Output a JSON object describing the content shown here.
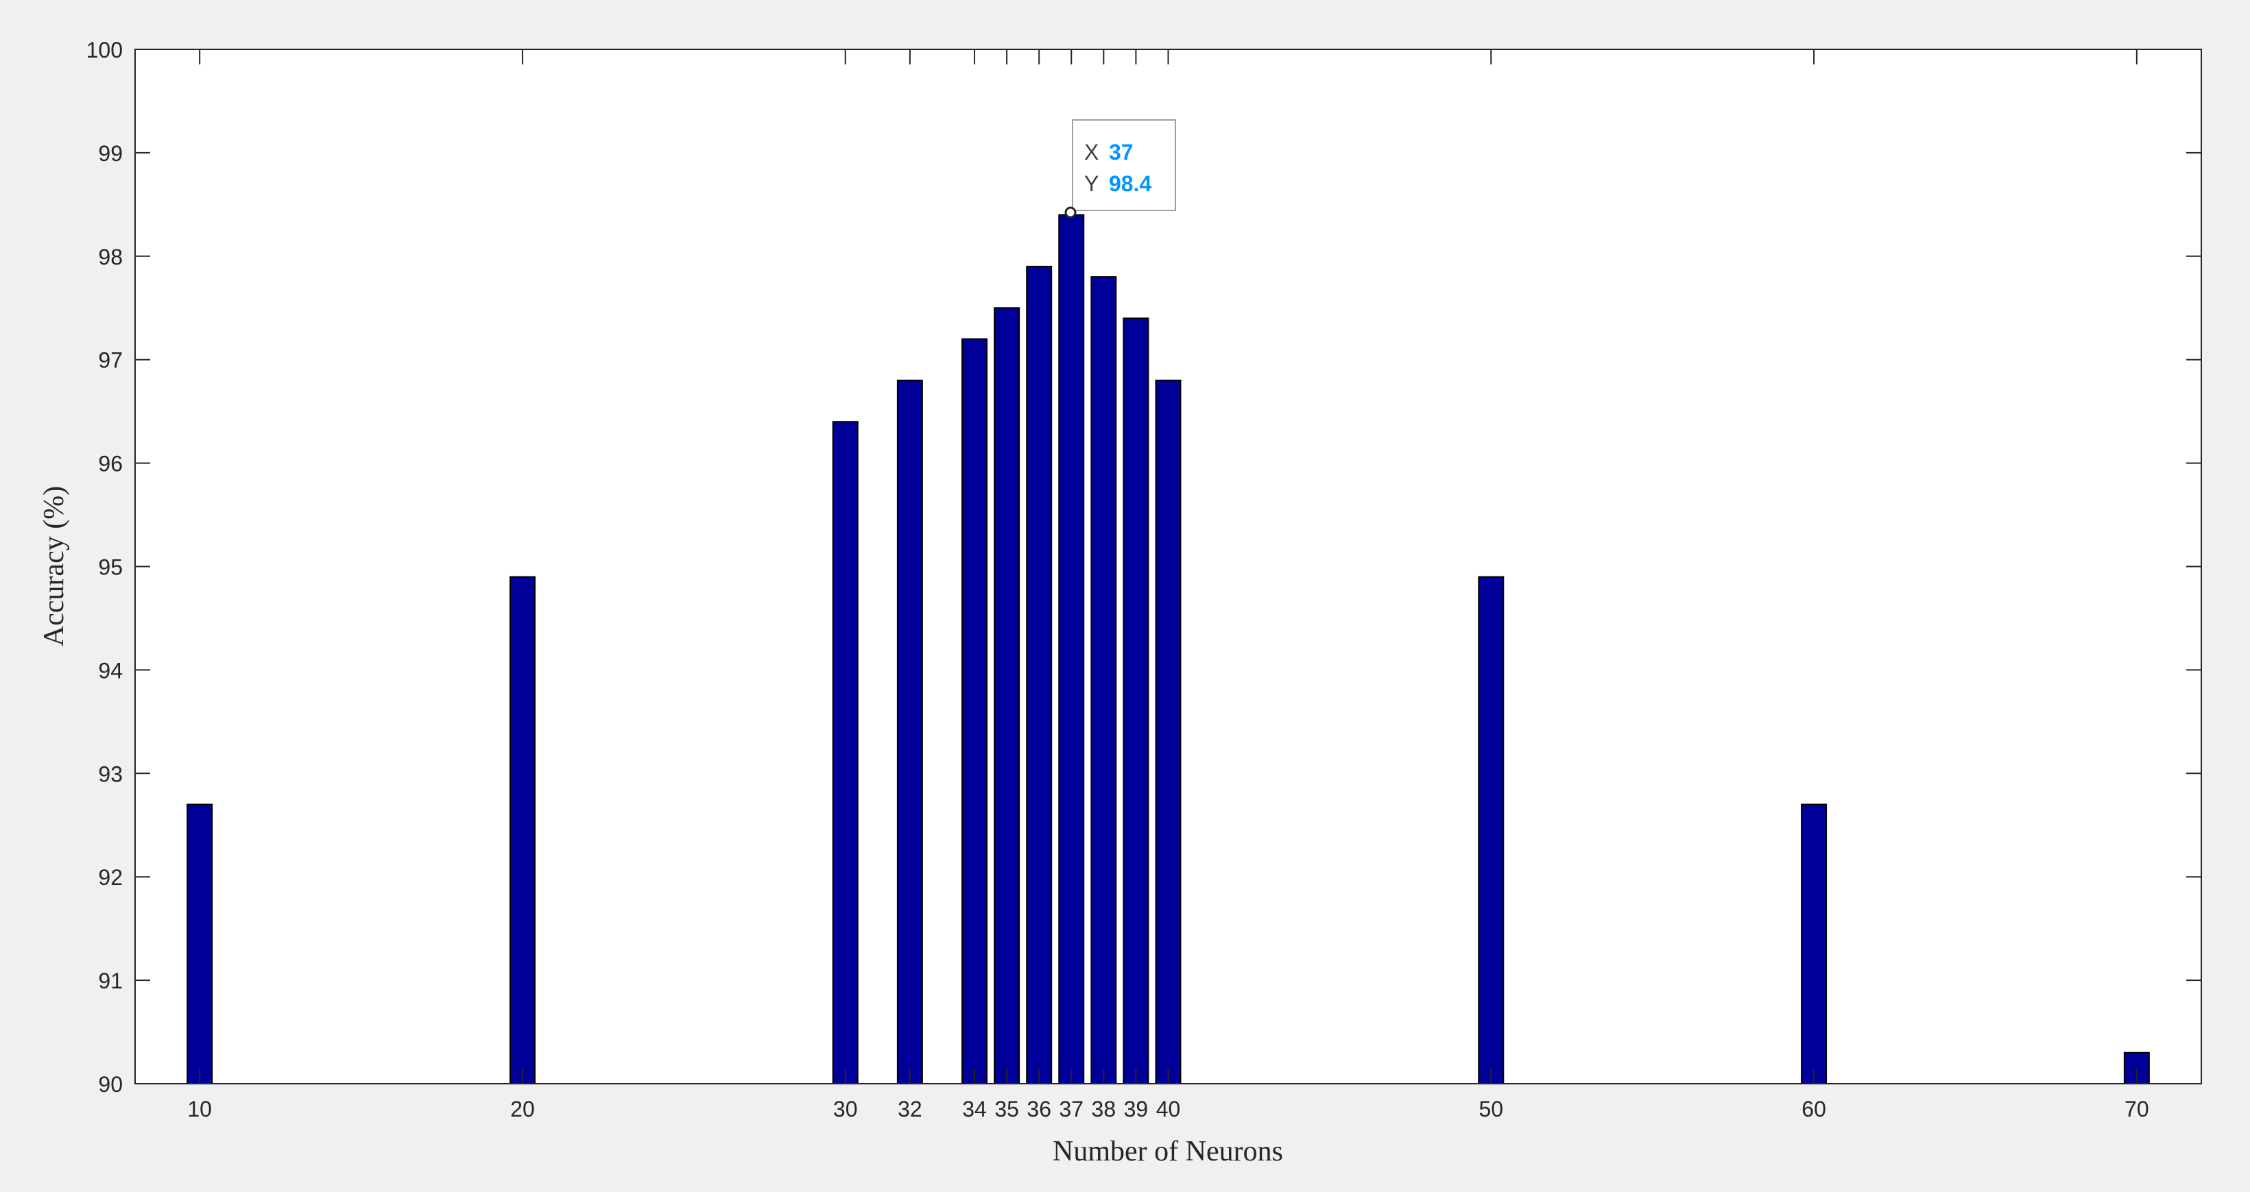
{
  "chart_data": {
    "type": "bar",
    "x": [
      10,
      20,
      30,
      32,
      34,
      35,
      36,
      37,
      38,
      39,
      40,
      50,
      60,
      70
    ],
    "values": [
      92.7,
      94.9,
      96.4,
      96.8,
      97.2,
      97.5,
      97.9,
      98.4,
      97.8,
      97.4,
      96.8,
      94.9,
      92.7,
      90.3
    ],
    "x_tick_labels": [
      "10",
      "20",
      "30",
      "32",
      "34",
      "35",
      "36",
      "37",
      "38",
      "39",
      "40",
      "50",
      "60",
      "70"
    ],
    "y_ticks": [
      90,
      91,
      92,
      93,
      94,
      95,
      96,
      97,
      98,
      99,
      100
    ],
    "y_tick_labels": [
      "90",
      "91",
      "92",
      "93",
      "94",
      "95",
      "96",
      "97",
      "98",
      "99",
      "100"
    ],
    "xlim": [
      8,
      72
    ],
    "ylim": [
      90,
      100
    ],
    "title": "",
    "xlabel": "Number of Neurons",
    "ylabel": "Accuracy (%)",
    "grid": false,
    "bar_color": "#000099",
    "datatip": {
      "x_label": "X",
      "x_value": "37",
      "y_label": "Y",
      "y_value": "98.4",
      "value_color": "#0096ff"
    }
  }
}
